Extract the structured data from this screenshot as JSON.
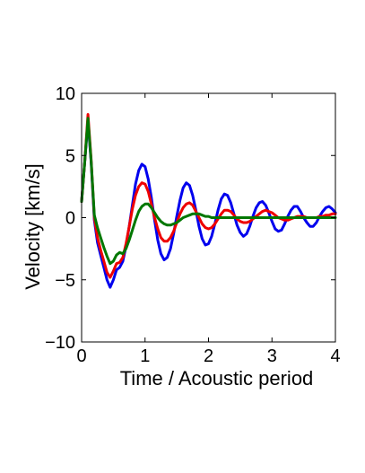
{
  "chart_data": {
    "type": "line",
    "title": "",
    "xlabel": "Time / Acoustic period",
    "ylabel": "Velocity [km/s]",
    "xlim": [
      0,
      4
    ],
    "ylim": [
      -10,
      10
    ],
    "xticks": [
      0,
      1,
      2,
      3,
      4
    ],
    "yticks": [
      -10,
      -5,
      0,
      5,
      10
    ],
    "xtick_labels": [
      "0",
      "1",
      "2",
      "3",
      "4"
    ],
    "ytick_labels": [
      "−10",
      "−5",
      "0",
      "5",
      "10"
    ],
    "grid": false,
    "legend": "none",
    "series": [
      {
        "color": "#0000ee",
        "x": [
          0.0,
          0.05,
          0.1,
          0.15,
          0.2,
          0.25,
          0.3,
          0.35,
          0.4,
          0.45,
          0.5,
          0.55,
          0.6,
          0.65,
          0.7,
          0.75,
          0.8,
          0.85,
          0.9,
          0.95,
          1.0,
          1.05,
          1.1,
          1.15,
          1.2,
          1.25,
          1.3,
          1.35,
          1.4,
          1.45,
          1.5,
          1.55,
          1.6,
          1.65,
          1.7,
          1.75,
          1.8,
          1.85,
          1.9,
          1.95,
          2.0,
          2.05,
          2.1,
          2.15,
          2.2,
          2.25,
          2.3,
          2.35,
          2.4,
          2.45,
          2.5,
          2.55,
          2.6,
          2.65,
          2.7,
          2.75,
          2.8,
          2.85,
          2.9,
          2.95,
          3.0,
          3.05,
          3.1,
          3.15,
          3.2,
          3.25,
          3.3,
          3.35,
          3.4,
          3.45,
          3.5,
          3.55,
          3.6,
          3.65,
          3.7,
          3.75,
          3.8,
          3.85,
          3.9,
          3.95,
          4.0
        ],
        "y": [
          1.3,
          4.5,
          7.8,
          4.5,
          -0.2,
          -2.0,
          -3.0,
          -4.0,
          -5.0,
          -5.6,
          -5.0,
          -4.2,
          -4.0,
          -3.5,
          -2.3,
          -0.7,
          1.0,
          2.7,
          3.8,
          4.3,
          4.1,
          3.1,
          1.6,
          -0.2,
          -1.8,
          -2.9,
          -3.4,
          -3.2,
          -2.5,
          -1.3,
          0.1,
          1.4,
          2.4,
          2.8,
          2.6,
          1.8,
          0.6,
          -0.7,
          -1.7,
          -2.2,
          -2.1,
          -1.5,
          -0.5,
          0.6,
          1.5,
          1.9,
          1.8,
          1.2,
          0.3,
          -0.6,
          -1.2,
          -1.5,
          -1.3,
          -0.7,
          0.1,
          0.8,
          1.2,
          1.3,
          1.0,
          0.4,
          -0.3,
          -0.9,
          -1.1,
          -1.0,
          -0.5,
          0.1,
          0.6,
          0.9,
          0.9,
          0.5,
          0.0,
          -0.4,
          -0.7,
          -0.7,
          -0.4,
          0.1,
          0.5,
          0.8,
          0.9,
          0.7,
          0.4
        ]
      },
      {
        "color": "#ee0000",
        "x": [
          0.0,
          0.05,
          0.1,
          0.15,
          0.2,
          0.25,
          0.3,
          0.35,
          0.4,
          0.45,
          0.5,
          0.55,
          0.6,
          0.65,
          0.7,
          0.75,
          0.8,
          0.85,
          0.9,
          0.95,
          1.0,
          1.05,
          1.1,
          1.15,
          1.2,
          1.25,
          1.3,
          1.35,
          1.4,
          1.45,
          1.5,
          1.55,
          1.6,
          1.65,
          1.7,
          1.75,
          1.8,
          1.85,
          1.9,
          1.95,
          2.0,
          2.05,
          2.1,
          2.15,
          2.2,
          2.25,
          2.3,
          2.35,
          2.4,
          2.45,
          2.5,
          2.55,
          2.6,
          2.65,
          2.7,
          2.75,
          2.8,
          2.85,
          2.9,
          2.95,
          3.0,
          3.05,
          3.1,
          3.15,
          3.2,
          3.25,
          3.3,
          3.35,
          3.4,
          3.45,
          3.5,
          3.55,
          3.6,
          3.65,
          3.7,
          3.75,
          3.8,
          3.85,
          3.9,
          3.95,
          4.0
        ],
        "y": [
          1.3,
          4.5,
          8.3,
          4.7,
          0.0,
          -1.6,
          -2.6,
          -3.5,
          -4.4,
          -4.8,
          -4.3,
          -3.7,
          -3.6,
          -3.2,
          -2.1,
          -0.7,
          0.7,
          1.8,
          2.5,
          2.8,
          2.7,
          2.1,
          1.1,
          0.0,
          -0.9,
          -1.6,
          -1.9,
          -1.9,
          -1.6,
          -1.1,
          -0.4,
          0.3,
          0.8,
          1.1,
          1.2,
          1.0,
          0.5,
          0.0,
          -0.5,
          -0.8,
          -0.9,
          -0.8,
          -0.5,
          -0.1,
          0.3,
          0.6,
          0.6,
          0.5,
          0.2,
          -0.1,
          -0.3,
          -0.4,
          -0.4,
          -0.3,
          -0.1,
          0.1,
          0.3,
          0.5,
          0.6,
          0.5,
          0.4,
          0.2,
          0.0,
          -0.1,
          -0.2,
          -0.2,
          -0.1,
          0.0,
          0.1,
          0.1,
          0.1,
          0.0,
          0.0,
          0.0,
          0.0,
          0.1,
          0.1,
          0.2,
          0.2,
          0.3,
          0.3
        ]
      },
      {
        "color": "#007700",
        "x": [
          0.0,
          0.05,
          0.1,
          0.15,
          0.2,
          0.25,
          0.3,
          0.35,
          0.4,
          0.45,
          0.5,
          0.55,
          0.6,
          0.65,
          0.7,
          0.75,
          0.8,
          0.85,
          0.9,
          0.95,
          1.0,
          1.05,
          1.1,
          1.15,
          1.2,
          1.25,
          1.3,
          1.35,
          1.4,
          1.45,
          1.5,
          1.55,
          1.6,
          1.65,
          1.7,
          1.75,
          1.8,
          1.85,
          1.9,
          1.95,
          2.0,
          2.05,
          2.1,
          2.15,
          2.2,
          2.25,
          2.3,
          2.35,
          2.4,
          2.45,
          2.5,
          2.55,
          2.6,
          2.65,
          2.7,
          2.75,
          2.8,
          2.85,
          2.9,
          2.95,
          3.0,
          3.05,
          3.1,
          3.15,
          3.2,
          3.25,
          3.3,
          3.35,
          3.4,
          3.45,
          3.5,
          3.55,
          3.6,
          3.65,
          3.7,
          3.75,
          3.8,
          3.85,
          3.9,
          3.95,
          4.0
        ],
        "y": [
          1.3,
          4.5,
          8.0,
          4.6,
          0.2,
          -0.8,
          -1.6,
          -2.4,
          -3.1,
          -3.7,
          -3.5,
          -3.0,
          -2.8,
          -2.9,
          -2.5,
          -1.8,
          -1.0,
          -0.2,
          0.5,
          0.9,
          1.1,
          1.1,
          0.8,
          0.4,
          0.0,
          -0.3,
          -0.5,
          -0.6,
          -0.6,
          -0.5,
          -0.4,
          -0.2,
          0.0,
          0.1,
          0.2,
          0.3,
          0.3,
          0.3,
          0.2,
          0.1,
          0.1,
          0.0,
          0.0,
          0.0,
          0.0,
          0.0,
          0.0,
          0.0,
          0.0,
          0.0,
          0.0,
          0.0,
          0.0,
          0.0,
          0.0,
          0.0,
          0.0,
          0.0,
          0.0,
          0.0,
          0.0,
          0.0,
          0.0,
          0.0,
          0.0,
          0.0,
          0.0,
          0.0,
          0.0,
          0.0,
          0.0,
          0.0,
          0.0,
          0.0,
          0.0,
          0.0,
          0.0,
          0.0,
          0.0,
          0.0,
          0.0
        ]
      }
    ]
  }
}
